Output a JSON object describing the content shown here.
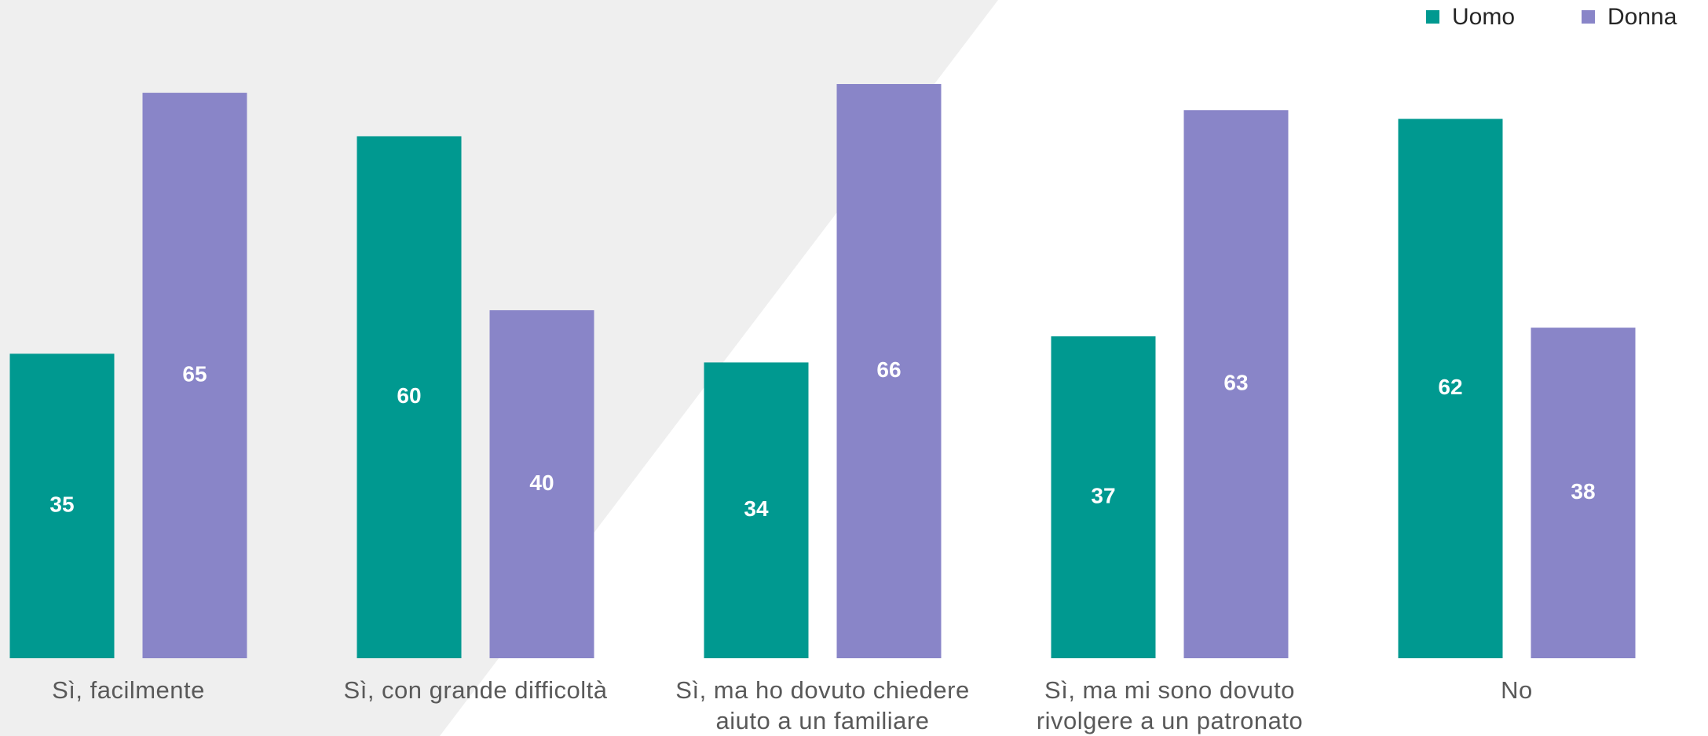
{
  "chart_data": {
    "type": "bar",
    "categories": [
      "Sì, facilmente",
      "Sì, con grande difficoltà",
      "Sì, ma ho dovuto chiedere aiuto a un familiare",
      "Sì, ma mi sono dovuto rivolgere a un patronato",
      "No"
    ],
    "series": [
      {
        "name": "Uomo",
        "color": "#009990",
        "values": [
          35,
          60,
          34,
          37,
          62
        ]
      },
      {
        "name": "Donna",
        "color": "#8985c8",
        "values": [
          65,
          40,
          66,
          63,
          38
        ]
      }
    ],
    "legend": "top-right"
  }
}
